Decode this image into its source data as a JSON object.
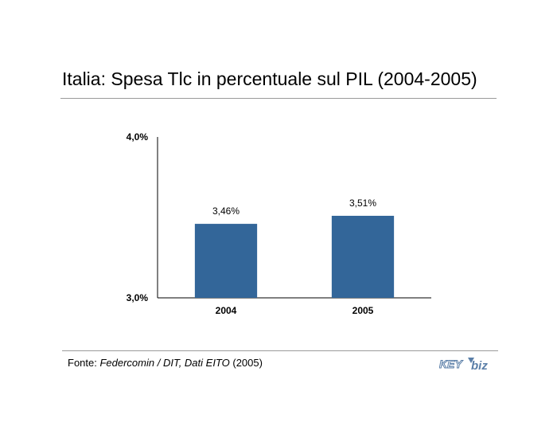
{
  "title": "Italia: Spesa Tlc in percentuale sul PIL (2004-2005)",
  "source": {
    "prefix": "Fonte: ",
    "italic": "Federcomin / DIT, Dati EITO",
    "suffix": " (2005)"
  },
  "logo": {
    "part1": "KEY",
    "part2": "biz",
    "color": "#5b7fa8"
  },
  "chart_data": {
    "type": "bar",
    "categories": [
      "2004",
      "2005"
    ],
    "values": [
      3.46,
      3.51
    ],
    "data_labels": [
      "3,46%",
      "3,51%"
    ],
    "ylim": [
      3.0,
      4.0
    ],
    "yticks": [
      {
        "value": 3.0,
        "label": "3,0%"
      },
      {
        "value": 4.0,
        "label": "4,0%"
      }
    ],
    "bar_color": "#336699",
    "grid": false,
    "legend": "none"
  }
}
